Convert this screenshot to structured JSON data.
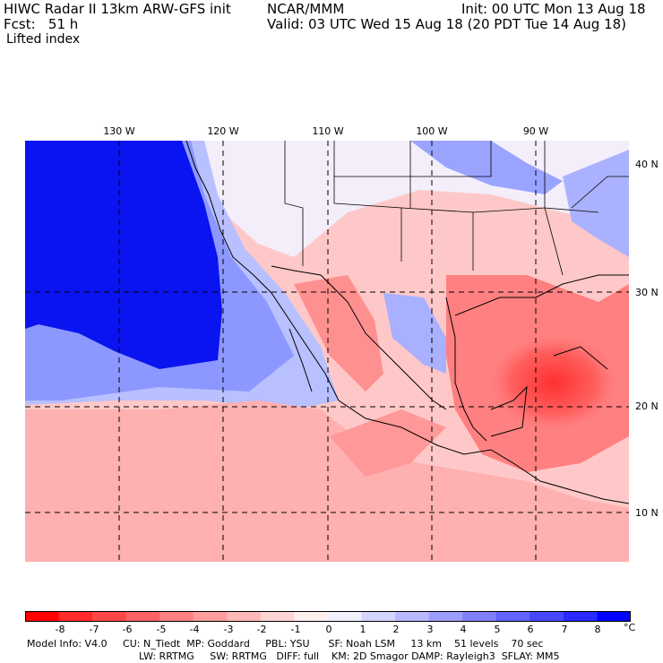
{
  "header": {
    "title": "HIWC Radar II 13km ARW-GFS init",
    "org": "NCAR/MMM",
    "init": "Init: 00 UTC Mon 13 Aug 18",
    "fcst": "Fcst:   51 h",
    "valid": "Valid: 03 UTC Wed 15 Aug 18 (20 PDT Tue 14 Aug 18)",
    "field": "Lifted index"
  },
  "map": {
    "lon_labels": [
      "130 W",
      "120 W",
      "110 W",
      "100 W",
      "90 W"
    ],
    "lat_labels": [
      "40 N",
      "30 N",
      "20 N",
      "10 N"
    ]
  },
  "colorbar": {
    "ticks": [
      "-8",
      "-7",
      "-6",
      "-5",
      "-4",
      "-3",
      "-2",
      "-1",
      "0",
      "1",
      "2",
      "3",
      "4",
      "5",
      "6",
      "7",
      "8"
    ],
    "unit": "°C",
    "colors": [
      "#ff0000",
      "#ff2a2a",
      "#ff4747",
      "#ff6363",
      "#ff8080",
      "#ff9c9c",
      "#ffb8b8",
      "#ffd4d4",
      "#fff0f0",
      "#f0f0ff",
      "#d4d4ff",
      "#b8b8ff",
      "#9c9cff",
      "#8080ff",
      "#6363ff",
      "#4747ff",
      "#2a2aff",
      "#0000ff"
    ]
  },
  "footer": {
    "line1": "Model Info: V4.0     CU: N_Tiedt  MP: Goddard     PBL: YSU      SF: Noah LSM     13 km    51 levels    70 sec",
    "line2": "LW: RRTMG     SW: RRTMG   DIFF: full    KM: 2D Smagor DAMP: Rayleigh3  SFLAY: MM5"
  }
}
